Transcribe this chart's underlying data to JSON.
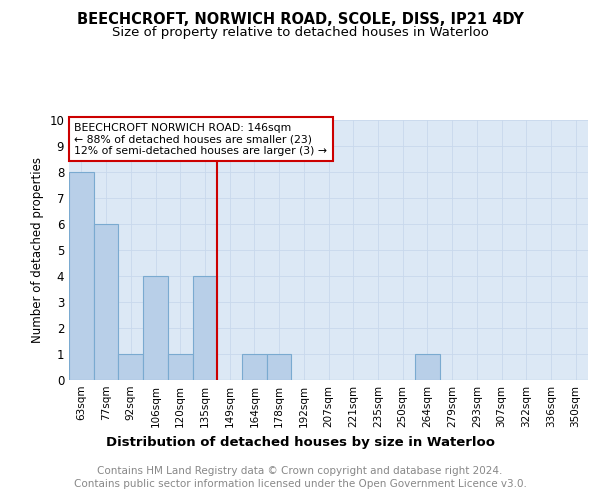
{
  "title": "BEECHCROFT, NORWICH ROAD, SCOLE, DISS, IP21 4DY",
  "subtitle": "Size of property relative to detached houses in Waterloo",
  "xlabel": "Distribution of detached houses by size in Waterloo",
  "ylabel": "Number of detached properties",
  "categories": [
    "63sqm",
    "77sqm",
    "92sqm",
    "106sqm",
    "120sqm",
    "135sqm",
    "149sqm",
    "164sqm",
    "178sqm",
    "192sqm",
    "207sqm",
    "221sqm",
    "235sqm",
    "250sqm",
    "264sqm",
    "279sqm",
    "293sqm",
    "307sqm",
    "322sqm",
    "336sqm",
    "350sqm"
  ],
  "values": [
    8,
    6,
    1,
    4,
    1,
    4,
    0,
    1,
    1,
    0,
    0,
    0,
    0,
    0,
    1,
    0,
    0,
    0,
    0,
    0,
    0
  ],
  "bar_color": "#b8cfe8",
  "bar_edge_color": "#7aaad0",
  "subject_line_index": 6,
  "subject_line_color": "#cc0000",
  "annotation_title": "BEECHCROFT NORWICH ROAD: 146sqm",
  "annotation_line1": "← 88% of detached houses are smaller (23)",
  "annotation_line2": "12% of semi-detached houses are larger (3) →",
  "annotation_box_color": "#ffffff",
  "annotation_box_edge": "#cc0000",
  "ylim": [
    0,
    10
  ],
  "yticks": [
    0,
    1,
    2,
    3,
    4,
    5,
    6,
    7,
    8,
    9,
    10
  ],
  "grid_color": "#c8d8ec",
  "background_color": "#dce8f5",
  "footer_line1": "Contains HM Land Registry data © Crown copyright and database right 2024.",
  "footer_line2": "Contains public sector information licensed under the Open Government Licence v3.0.",
  "title_fontsize": 10.5,
  "subtitle_fontsize": 9.5,
  "xlabel_fontsize": 9.5,
  "ylabel_fontsize": 8.5,
  "footer_fontsize": 7.5,
  "tick_fontsize": 7.5,
  "ytick_fontsize": 8.5
}
